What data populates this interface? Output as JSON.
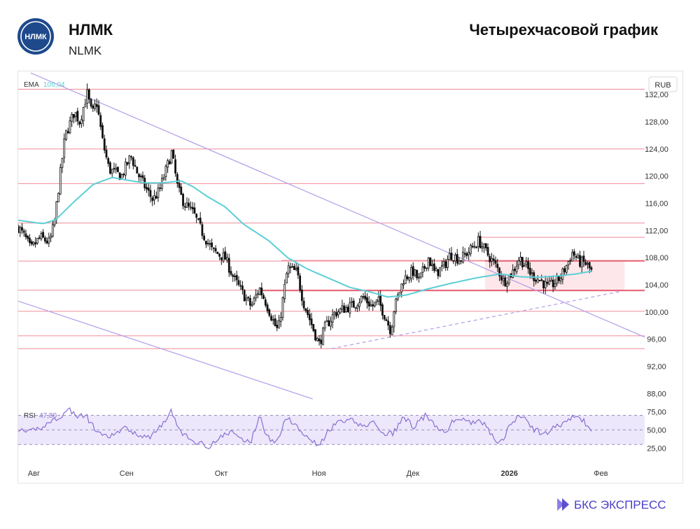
{
  "header": {
    "logo_text": "НЛМК",
    "ticker": "НЛМК",
    "ticker_sub": "NLMK",
    "chart_kind": "Четырехчасовой график"
  },
  "footer": {
    "brand": "БКС ЭКСПРЕСС"
  },
  "colors": {
    "candle": "#111111",
    "ema": "#5bcfd6",
    "level": "#f08a96",
    "channel": "#b8a3e8",
    "rsi": "#8a6fd1",
    "rsi_band": "#ece7fb",
    "logo": "#1e4a8c"
  },
  "chart_data": {
    "type": "candlestick",
    "currency": "RUB",
    "y_ticks": [
      "132,00",
      "128,00",
      "124,00",
      "120,00",
      "116,00",
      "112,00",
      "108,00",
      "104,00",
      "100,00",
      "96,00",
      "92,00",
      "88,00"
    ],
    "ylim": [
      86.8,
      134.6
    ],
    "x_labels": [
      "Авг",
      "Сен",
      "Окт",
      "Ноя",
      "Дек",
      "2026",
      "Фев"
    ],
    "x_label_bold": [
      "2026"
    ],
    "ema": {
      "label": "EMA",
      "value": "106,04"
    },
    "rsi": {
      "label": "RSI",
      "value": "47,80",
      "ticks": [
        "75,00",
        "50,00",
        "25,00"
      ],
      "ylim": [
        12,
        83
      ],
      "upper": 70,
      "mid": 50,
      "lower": 30
    },
    "horizontal_levels": [
      132.8,
      124.0,
      118.9,
      113.1,
      107.5,
      103.2,
      100.1,
      96.5,
      94.6
    ],
    "short_levels": [
      {
        "from": 0.735,
        "value": 111.0
      },
      {
        "from": 0.42,
        "value": 107.6
      },
      {
        "from": 0.39,
        "value": 103.1
      }
    ],
    "resistance_zone": [
      103.2,
      107.5
    ],
    "trend_lines": {
      "upper_channel": [
        [
          0.02,
          135.2
        ],
        [
          1.0,
          96.3
        ]
      ],
      "lower_channel": [
        [
          0.0,
          101.6
        ],
        [
          0.47,
          87.2
        ]
      ],
      "support_dashed": [
        [
          0.5,
          94.6
        ],
        [
          0.96,
          103.0
        ]
      ]
    },
    "anchors": [
      [
        0.0,
        112.5
      ],
      [
        0.012,
        110.8
      ],
      [
        0.02,
        109.2
      ],
      [
        0.035,
        111.0
      ],
      [
        0.05,
        110.2
      ],
      [
        0.058,
        113.3
      ],
      [
        0.066,
        119.5
      ],
      [
        0.075,
        126.0
      ],
      [
        0.09,
        129.5
      ],
      [
        0.098,
        128.0
      ],
      [
        0.11,
        132.2
      ],
      [
        0.118,
        129.0
      ],
      [
        0.125,
        131.0
      ],
      [
        0.135,
        125.0
      ],
      [
        0.145,
        121.0
      ],
      [
        0.165,
        120.0
      ],
      [
        0.18,
        123.0
      ],
      [
        0.19,
        120.5
      ],
      [
        0.205,
        118.0
      ],
      [
        0.215,
        116.5
      ],
      [
        0.225,
        117.8
      ],
      [
        0.238,
        121.5
      ],
      [
        0.245,
        123.5
      ],
      [
        0.255,
        118.0
      ],
      [
        0.265,
        116.0
      ],
      [
        0.28,
        114.5
      ],
      [
        0.295,
        111.5
      ],
      [
        0.31,
        109.0
      ],
      [
        0.33,
        108.0
      ],
      [
        0.345,
        104.8
      ],
      [
        0.36,
        102.5
      ],
      [
        0.372,
        100.8
      ],
      [
        0.385,
        103.5
      ],
      [
        0.395,
        101.5
      ],
      [
        0.41,
        98.0
      ],
      [
        0.415,
        97.2
      ],
      [
        0.43,
        106.5
      ],
      [
        0.445,
        105.8
      ],
      [
        0.455,
        101.5
      ],
      [
        0.465,
        99.0
      ],
      [
        0.48,
        95.2
      ],
      [
        0.49,
        97.8
      ],
      [
        0.505,
        99.8
      ],
      [
        0.52,
        100.5
      ],
      [
        0.535,
        101.0
      ],
      [
        0.55,
        102.2
      ],
      [
        0.565,
        100.8
      ],
      [
        0.575,
        101.6
      ],
      [
        0.585,
        99.5
      ],
      [
        0.595,
        97.2
      ],
      [
        0.6,
        100.5
      ],
      [
        0.615,
        104.8
      ],
      [
        0.63,
        106.0
      ],
      [
        0.64,
        104.6
      ],
      [
        0.655,
        108.0
      ],
      [
        0.665,
        105.6
      ],
      [
        0.68,
        106.8
      ],
      [
        0.69,
        108.5
      ],
      [
        0.705,
        107.7
      ],
      [
        0.72,
        109.0
      ],
      [
        0.735,
        110.5
      ],
      [
        0.75,
        108.4
      ],
      [
        0.765,
        106.4
      ],
      [
        0.775,
        104.4
      ],
      [
        0.79,
        106.0
      ],
      [
        0.8,
        108.0
      ],
      [
        0.81,
        106.8
      ],
      [
        0.82,
        105.4
      ],
      [
        0.835,
        104.6
      ],
      [
        0.845,
        103.6
      ],
      [
        0.855,
        104.2
      ],
      [
        0.865,
        105.0
      ],
      [
        0.875,
        106.8
      ],
      [
        0.885,
        108.8
      ],
      [
        0.895,
        107.4
      ],
      [
        0.905,
        107.2
      ],
      [
        0.915,
        106.0
      ]
    ],
    "ema_anchors": [
      [
        0.0,
        113.5
      ],
      [
        0.04,
        113.0
      ],
      [
        0.06,
        113.6
      ],
      [
        0.09,
        116.3
      ],
      [
        0.12,
        118.8
      ],
      [
        0.15,
        119.8
      ],
      [
        0.2,
        119.0
      ],
      [
        0.23,
        119.0
      ],
      [
        0.26,
        119.3
      ],
      [
        0.28,
        118.4
      ],
      [
        0.3,
        117.1
      ],
      [
        0.33,
        115.5
      ],
      [
        0.36,
        112.9
      ],
      [
        0.4,
        110.5
      ],
      [
        0.43,
        108.0
      ],
      [
        0.46,
        106.4
      ],
      [
        0.5,
        104.8
      ],
      [
        0.53,
        103.6
      ],
      [
        0.56,
        103.0
      ],
      [
        0.59,
        102.2
      ],
      [
        0.62,
        102.5
      ],
      [
        0.65,
        103.3
      ],
      [
        0.69,
        104.2
      ],
      [
        0.73,
        105.0
      ],
      [
        0.77,
        105.6
      ],
      [
        0.8,
        105.2
      ],
      [
        0.83,
        105.1
      ],
      [
        0.86,
        105.3
      ],
      [
        0.89,
        105.6
      ],
      [
        0.915,
        106.0
      ]
    ],
    "rsi_anchors": [
      [
        0.0,
        52
      ],
      [
        0.012,
        44
      ],
      [
        0.022,
        49
      ],
      [
        0.04,
        55
      ],
      [
        0.055,
        63
      ],
      [
        0.07,
        70
      ],
      [
        0.082,
        78
      ],
      [
        0.095,
        68
      ],
      [
        0.108,
        70
      ],
      [
        0.12,
        54
      ],
      [
        0.135,
        40
      ],
      [
        0.15,
        42
      ],
      [
        0.17,
        52
      ],
      [
        0.19,
        45
      ],
      [
        0.205,
        38
      ],
      [
        0.22,
        48
      ],
      [
        0.238,
        68
      ],
      [
        0.245,
        76
      ],
      [
        0.258,
        48
      ],
      [
        0.275,
        36
      ],
      [
        0.29,
        32
      ],
      [
        0.305,
        28
      ],
      [
        0.32,
        38
      ],
      [
        0.34,
        48
      ],
      [
        0.36,
        35
      ],
      [
        0.372,
        35
      ],
      [
        0.385,
        70
      ],
      [
        0.395,
        46
      ],
      [
        0.41,
        28
      ],
      [
        0.428,
        69
      ],
      [
        0.445,
        54
      ],
      [
        0.465,
        40
      ],
      [
        0.48,
        27
      ],
      [
        0.495,
        48
      ],
      [
        0.51,
        60
      ],
      [
        0.53,
        63
      ],
      [
        0.55,
        56
      ],
      [
        0.57,
        60
      ],
      [
        0.585,
        41
      ],
      [
        0.6,
        47
      ],
      [
        0.615,
        68
      ],
      [
        0.632,
        54
      ],
      [
        0.65,
        70
      ],
      [
        0.665,
        55
      ],
      [
        0.68,
        45
      ],
      [
        0.695,
        63
      ],
      [
        0.71,
        65
      ],
      [
        0.725,
        58
      ],
      [
        0.735,
        68
      ],
      [
        0.755,
        43
      ],
      [
        0.77,
        32
      ],
      [
        0.79,
        63
      ],
      [
        0.805,
        69
      ],
      [
        0.82,
        52
      ],
      [
        0.84,
        44
      ],
      [
        0.86,
        55
      ],
      [
        0.878,
        64
      ],
      [
        0.892,
        69
      ],
      [
        0.905,
        60
      ],
      [
        0.915,
        47.8
      ]
    ]
  }
}
